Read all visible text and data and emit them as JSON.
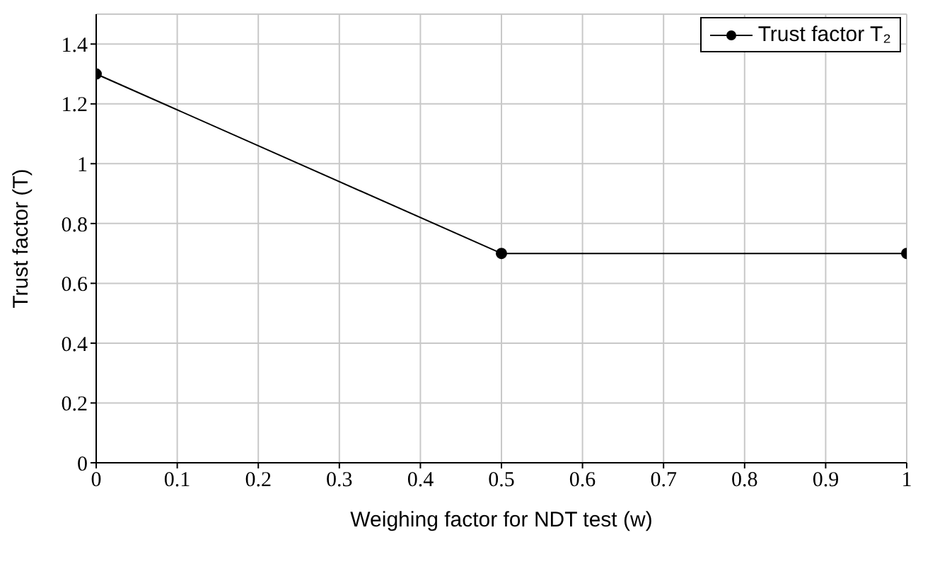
{
  "chart_data": {
    "type": "line",
    "xlabel": "Weighing factor for NDT test (w)",
    "ylabel": "Trust factor (T)",
    "x": [
      0,
      0.5,
      1
    ],
    "series": [
      {
        "name": "Trust factor T₂",
        "color": "#000000",
        "values": [
          1.3,
          0.7,
          0.7
        ]
      }
    ],
    "xlim": [
      0,
      1
    ],
    "xticks": [
      0,
      0.1,
      0.2,
      0.3,
      0.4,
      0.5,
      0.6,
      0.7,
      0.8,
      0.9,
      1
    ],
    "ylim": [
      0,
      1.5
    ],
    "yticks": [
      0,
      0.2,
      0.4,
      0.6,
      0.8,
      1,
      1.2,
      1.4
    ],
    "grid": true,
    "legend": "top right",
    "marker": "circle",
    "line_style": "solid"
  }
}
